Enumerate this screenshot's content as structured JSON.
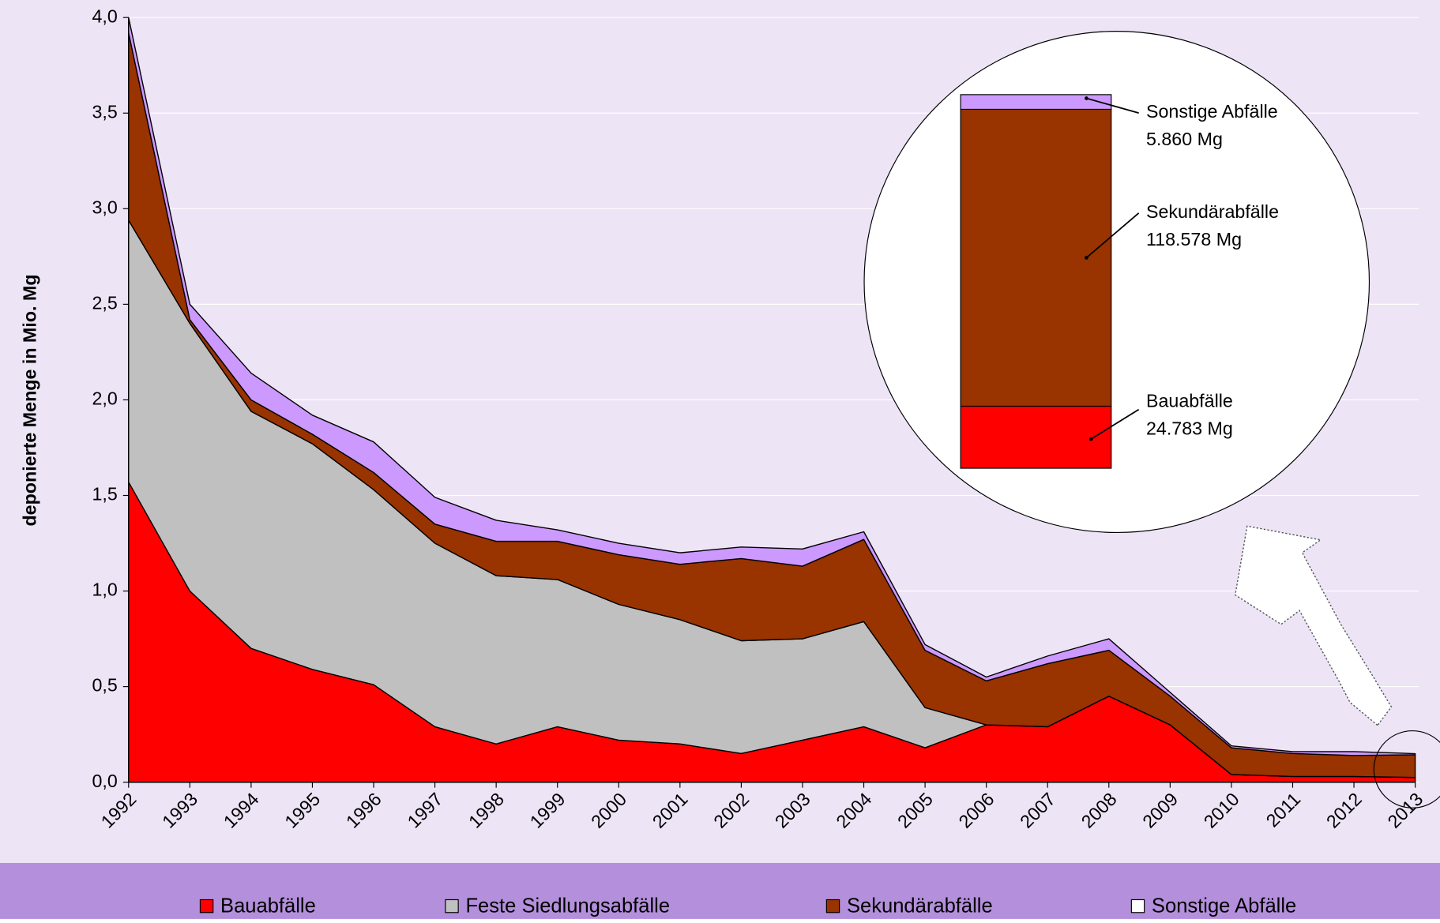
{
  "chart_data": {
    "type": "stacked_area",
    "y_label": "deponierte Menge in Mio. Mg",
    "categories": [
      "1992",
      "1993",
      "1994",
      "1995",
      "1996",
      "1997",
      "1998",
      "1999",
      "2000",
      "2001",
      "2002",
      "2003",
      "2004",
      "2005",
      "2006",
      "2007",
      "2008",
      "2009",
      "2010",
      "2011",
      "2012",
      "2013"
    ],
    "series": [
      {
        "name": "Bauabfälle",
        "color": "#ff0000",
        "values": [
          1.57,
          1.0,
          0.7,
          0.59,
          0.51,
          0.29,
          0.2,
          0.29,
          0.22,
          0.2,
          0.15,
          0.22,
          0.29,
          0.18,
          0.3,
          0.29,
          0.45,
          0.3,
          0.04,
          0.03,
          0.03,
          0.024783
        ],
        "value_labels": [
          null,
          null,
          null,
          null,
          null,
          null,
          null,
          null,
          null,
          null,
          null,
          null,
          null,
          null,
          null,
          null,
          null,
          null,
          null,
          null,
          null,
          "24.783 Mg"
        ]
      },
      {
        "name": "Feste Siedlungsabfälle",
        "color": "#c0c0c0",
        "values": [
          1.37,
          1.4,
          1.24,
          1.18,
          1.02,
          0.96,
          0.88,
          0.77,
          0.71,
          0.65,
          0.59,
          0.53,
          0.55,
          0.21,
          0,
          0,
          0,
          0,
          0,
          0,
          0,
          0
        ]
      },
      {
        "name": "Sekundärabfälle",
        "color": "#993300",
        "values": [
          0.98,
          0.02,
          0.06,
          0.05,
          0.09,
          0.1,
          0.18,
          0.2,
          0.26,
          0.29,
          0.43,
          0.38,
          0.43,
          0.3,
          0.23,
          0.33,
          0.24,
          0.15,
          0.14,
          0.12,
          0.11,
          0.118578
        ],
        "value_labels": [
          null,
          null,
          null,
          null,
          null,
          null,
          null,
          null,
          null,
          null,
          null,
          null,
          null,
          null,
          null,
          null,
          null,
          null,
          null,
          null,
          null,
          "118.578 Mg"
        ]
      },
      {
        "name": "Sonstige Abfälle",
        "color": "#cc99ff",
        "legend_color": "#ffffff",
        "values": [
          0.08,
          0.08,
          0.14,
          0.1,
          0.16,
          0.14,
          0.11,
          0.06,
          0.06,
          0.06,
          0.06,
          0.09,
          0.04,
          0.03,
          0.02,
          0.04,
          0.06,
          0.02,
          0.01,
          0.01,
          0.02,
          0.00586
        ],
        "value_labels": [
          null,
          null,
          null,
          null,
          null,
          null,
          null,
          null,
          null,
          null,
          null,
          null,
          null,
          null,
          null,
          null,
          null,
          null,
          null,
          null,
          null,
          "5.860 Mg"
        ]
      }
    ],
    "ylim": [
      0,
      4
    ],
    "yticks": [
      {
        "value": 0,
        "label": "0,0"
      },
      {
        "value": 0.5,
        "label": "0,5"
      },
      {
        "value": 1,
        "label": "1,0"
      },
      {
        "value": 1.5,
        "label": "1,5"
      },
      {
        "value": 2,
        "label": "2,0"
      },
      {
        "value": 2.5,
        "label": "2,5"
      },
      {
        "value": 3,
        "label": "3,0"
      },
      {
        "value": 3.5,
        "label": "3,5"
      },
      {
        "value": 4,
        "label": "4,0"
      }
    ],
    "grid": true,
    "legend": "bottom"
  }
}
